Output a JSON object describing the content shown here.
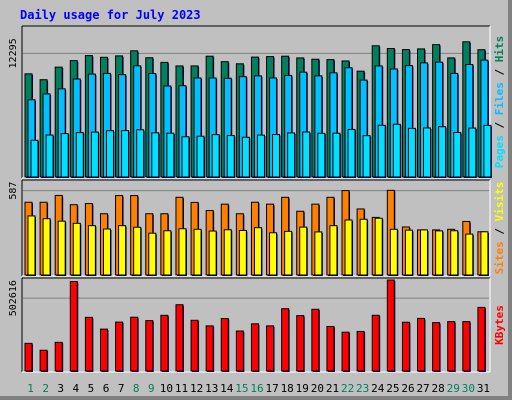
{
  "title": "Daily usage for July 2023",
  "days": [
    "1",
    "2",
    "3",
    "4",
    "5",
    "6",
    "7",
    "8",
    "9",
    "10",
    "11",
    "12",
    "13",
    "14",
    "15",
    "16",
    "17",
    "18",
    "19",
    "20",
    "21",
    "22",
    "23",
    "24",
    "25",
    "26",
    "27",
    "28",
    "29",
    "30",
    "31"
  ],
  "weekend_days": [
    "1",
    "2",
    "8",
    "9",
    "15",
    "16",
    "22",
    "23",
    "29",
    "30"
  ],
  "colors": {
    "background": "#c0c0c0",
    "plot_bg": "#c0c0c0",
    "title": "#0000ff",
    "hits": "#00805c",
    "files": "#00c0ff",
    "pages": "#00e0ff",
    "visits": "#ffff00",
    "sites": "#ff8000",
    "kbytes": "#ff0000",
    "weekday_label": "#000000",
    "weekend_label": "#00805c"
  },
  "chart_data": [
    {
      "type": "bar",
      "panel": "hits-files-pages",
      "ytick_label": "12295",
      "ytick_value": 12295,
      "ylim": [
        0,
        15000
      ],
      "categories": [
        "1",
        "2",
        "3",
        "4",
        "5",
        "6",
        "7",
        "8",
        "9",
        "10",
        "11",
        "12",
        "13",
        "14",
        "15",
        "16",
        "17",
        "18",
        "19",
        "20",
        "21",
        "22",
        "23",
        "24",
        "25",
        "26",
        "27",
        "28",
        "29",
        "30",
        "31"
      ],
      "axis_label_parts": [
        {
          "text": "Pages",
          "color": "#00e0ff"
        },
        {
          "text": " / ",
          "color": "#000000"
        },
        {
          "text": "Files",
          "color": "#00c0ff"
        },
        {
          "text": " / ",
          "color": "#000000"
        },
        {
          "text": "Hits",
          "color": "#00805c"
        }
      ],
      "series": [
        {
          "name": "Hits",
          "color": "#00805c",
          "values": [
            10280,
            9700,
            10940,
            11580,
            12080,
            11910,
            12050,
            12550,
            11870,
            11410,
            11060,
            11060,
            12020,
            11480,
            11270,
            11930,
            11980,
            12020,
            11850,
            11720,
            11680,
            11550,
            10540,
            13050,
            12780,
            12670,
            12740,
            13160,
            11850,
            13440,
            12660
          ]
        },
        {
          "name": "Files",
          "color": "#00c0ff",
          "values": [
            7720,
            8300,
            8800,
            9770,
            10250,
            10320,
            10200,
            11070,
            10310,
            9080,
            9110,
            9870,
            9870,
            9840,
            10000,
            10080,
            9870,
            10120,
            10440,
            10080,
            10380,
            10880,
            9660,
            11060,
            10760,
            11090,
            11360,
            11430,
            10320,
            11200,
            11630
          ]
        },
        {
          "name": "Pages",
          "color": "#00e0ff",
          "values": [
            3720,
            4240,
            4380,
            4480,
            4530,
            4670,
            4680,
            4760,
            4460,
            4420,
            4070,
            4120,
            4280,
            4190,
            4020,
            4230,
            4290,
            4450,
            4540,
            4410,
            4420,
            4790,
            4180,
            5200,
            5300,
            4900,
            4940,
            5060,
            4490,
            4930,
            5190
          ]
        }
      ]
    },
    {
      "type": "bar",
      "panel": "visits-sites",
      "ytick_label": "587",
      "ytick_value": 587,
      "ylim": [
        0,
        660
      ],
      "categories": [
        "1",
        "2",
        "3",
        "4",
        "5",
        "6",
        "7",
        "8",
        "9",
        "10",
        "11",
        "12",
        "13",
        "14",
        "15",
        "16",
        "17",
        "18",
        "19",
        "20",
        "21",
        "22",
        "23",
        "24",
        "25",
        "26",
        "27",
        "28",
        "29",
        "30",
        "31"
      ],
      "axis_label_parts": [
        {
          "text": "Sites",
          "color": "#ff8000"
        },
        {
          "text": " / ",
          "color": "#000000"
        },
        {
          "text": "Visits",
          "color": "#ffff00"
        }
      ],
      "series": [
        {
          "name": "Sites",
          "color": "#ff8000",
          "values": [
            507,
            507,
            554,
            490,
            498,
            428,
            553,
            553,
            428,
            428,
            541,
            506,
            450,
            494,
            428,
            507,
            494,
            541,
            445,
            494,
            541,
            587,
            461,
            403,
            589,
            337,
            317,
            317,
            321,
            375,
            304
          ]
        },
        {
          "name": "Visits",
          "color": "#ffff00",
          "values": [
            413,
            394,
            377,
            362,
            346,
            323,
            346,
            335,
            294,
            311,
            325,
            321,
            309,
            318,
            313,
            332,
            297,
            307,
            336,
            303,
            346,
            385,
            390,
            397,
            321,
            315,
            317,
            310,
            311,
            288,
            304
          ]
        }
      ]
    },
    {
      "type": "bar",
      "panel": "kbytes",
      "ytick_label": "502616",
      "ytick_value": 502616,
      "ylim": [
        0,
        640000
      ],
      "categories": [
        "1",
        "2",
        "3",
        "4",
        "5",
        "6",
        "7",
        "8",
        "9",
        "10",
        "11",
        "12",
        "13",
        "14",
        "15",
        "16",
        "17",
        "18",
        "19",
        "20",
        "21",
        "22",
        "23",
        "24",
        "25",
        "26",
        "27",
        "28",
        "29",
        "30",
        "31"
      ],
      "axis_label_parts": [
        {
          "text": "KBytes",
          "color": "#ff0000"
        }
      ],
      "series": [
        {
          "name": "KBytes",
          "color": "#ff0000",
          "values": [
            195000,
            148000,
            202000,
            616000,
            372000,
            292000,
            340000,
            373000,
            350000,
            386000,
            458000,
            352000,
            314000,
            364000,
            279000,
            328000,
            314000,
            431000,
            384000,
            427000,
            310000,
            271000,
            276000,
            386000,
            626000,
            339000,
            365000,
            336000,
            343000,
            343000,
            440000
          ]
        }
      ]
    }
  ]
}
